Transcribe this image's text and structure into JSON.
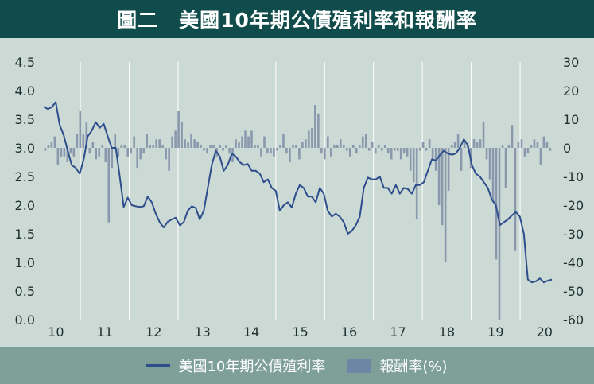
{
  "title": "圖二　美國10年期公債殖利率和報酬率",
  "legend": {
    "line_label": "美國10年期公債殖利率",
    "bar_label": "報酬率(%)"
  },
  "colors": {
    "title_bg": "#0f4c4b",
    "plot_bg": "#ccdad5",
    "legend_bg": "#7f9f99",
    "line": "#2e4d8c",
    "bar": "#8a98ad",
    "grid": "#ffffff"
  },
  "chart_data": {
    "type": "line+bar",
    "title": "圖二　美國10年期公債殖利率和報酬率",
    "x_tick_labels": [
      "10",
      "11",
      "12",
      "13",
      "14",
      "15",
      "16",
      "17",
      "18",
      "19",
      "20"
    ],
    "left_axis": {
      "ylim": [
        0,
        4.5
      ],
      "ticks": [
        "4.5",
        "4.0",
        "3.5",
        "3.0",
        "2.5",
        "2.0",
        "1.5",
        "1.0",
        "0.5",
        "0.0"
      ]
    },
    "right_axis": {
      "ylim": [
        -60,
        30
      ],
      "ticks": [
        "30",
        "20",
        "10",
        "0",
        "-10",
        "-20",
        "-30",
        "-40",
        "-50",
        "-60"
      ]
    },
    "grid": "vertical",
    "legend_position": "bottom",
    "series": [
      {
        "name": "美國10年期公債殖利率",
        "type": "line",
        "axis": "left",
        "values": [
          3.72,
          3.68,
          3.71,
          3.8,
          3.4,
          3.22,
          2.95,
          2.7,
          2.65,
          2.55,
          2.8,
          3.2,
          3.3,
          3.45,
          3.35,
          3.42,
          3.2,
          3.0,
          3.0,
          2.5,
          1.97,
          2.13,
          2.0,
          1.98,
          1.97,
          1.98,
          2.15,
          2.05,
          1.85,
          1.7,
          1.61,
          1.71,
          1.75,
          1.78,
          1.65,
          1.7,
          1.9,
          1.98,
          1.95,
          1.75,
          1.9,
          2.3,
          2.7,
          2.95,
          2.85,
          2.6,
          2.7,
          2.9,
          2.85,
          2.75,
          2.7,
          2.72,
          2.6,
          2.6,
          2.55,
          2.4,
          2.45,
          2.3,
          2.25,
          1.9,
          2.0,
          2.05,
          1.96,
          2.2,
          2.35,
          2.3,
          2.15,
          2.15,
          2.05,
          2.3,
          2.2,
          1.9,
          1.8,
          1.85,
          1.8,
          1.7,
          1.5,
          1.55,
          1.65,
          1.8,
          2.3,
          2.48,
          2.45,
          2.45,
          2.5,
          2.3,
          2.3,
          2.2,
          2.35,
          2.2,
          2.3,
          2.28,
          2.2,
          2.35,
          2.35,
          2.4,
          2.6,
          2.8,
          2.78,
          2.87,
          2.95,
          2.9,
          2.88,
          2.9,
          3.0,
          3.15,
          3.05,
          2.7,
          2.55,
          2.5,
          2.4,
          2.3,
          2.1,
          2.0,
          1.65,
          1.7,
          1.75,
          1.82,
          1.88,
          1.8,
          1.5,
          0.7,
          0.65,
          0.67,
          0.72,
          0.65,
          0.68,
          0.7
        ]
      },
      {
        "name": "報酬率(%)",
        "type": "bar",
        "axis": "right",
        "values": [
          -1,
          1,
          2,
          4,
          -6,
          -3,
          -3,
          -5,
          -2,
          -3,
          5,
          13,
          5,
          9,
          -2,
          2,
          -4,
          -3,
          1,
          -5,
          -26,
          -7,
          5,
          -3,
          1,
          1,
          -3,
          -2,
          4,
          -7,
          -4,
          -2,
          5,
          1,
          1,
          3,
          3,
          1,
          -4,
          -8,
          4,
          6,
          13,
          9,
          3,
          2,
          5,
          3,
          2,
          1,
          -1,
          -2,
          1,
          1,
          -3,
          1,
          -1,
          1,
          -2,
          -5,
          3,
          2,
          4,
          6,
          4,
          6,
          1,
          1,
          -3,
          4,
          -2,
          -2,
          -3,
          -1,
          1,
          5,
          -2,
          -5,
          1,
          1,
          -4,
          2,
          3,
          6,
          7,
          15,
          12,
          -2,
          -4,
          4,
          -3,
          1,
          1,
          3,
          1,
          -1,
          -3,
          1,
          -2,
          1,
          4,
          5,
          -1,
          2,
          -2,
          1,
          -1,
          1,
          -2,
          -4,
          -1,
          -1,
          -4,
          -2,
          -3,
          -8,
          -12,
          -25,
          -1,
          2,
          -1,
          3,
          -4,
          -8,
          -20,
          -27,
          -40,
          -15,
          1,
          2,
          5,
          -8,
          2,
          1,
          -7,
          3,
          2,
          3,
          9,
          -4,
          -11,
          -19,
          -39,
          -60,
          1,
          -14,
          1,
          8,
          -36,
          2,
          3,
          -3,
          -2,
          1,
          3,
          2,
          -6,
          4,
          2,
          -1
        ]
      }
    ]
  }
}
